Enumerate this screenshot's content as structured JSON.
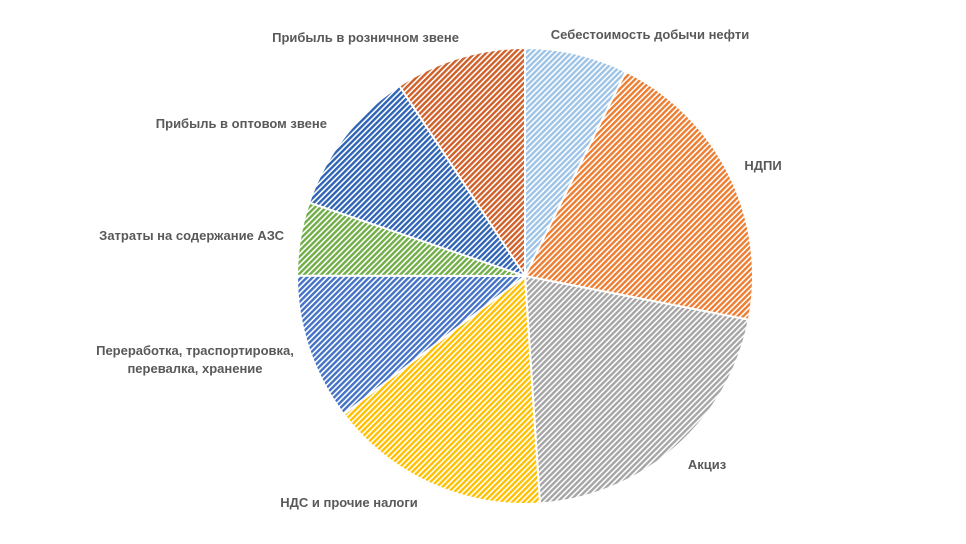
{
  "chart_data": {
    "type": "pie",
    "categories": [
      "Себестоимость добычи нефти",
      "НДПИ",
      "Акциз",
      "НДС и прочие налоги",
      "Переработка, траспортировка, перевалка, хранение",
      "Затраты на содержание АЗС",
      "Прибыль в оптовом звене",
      "Прибыль в розничном звене"
    ],
    "values": [
      7.3,
      20.8,
      20.9,
      15.7,
      10.4,
      5.2,
      10.5,
      9.3
    ],
    "colors": [
      "#9dc3e6",
      "#ed7d31",
      "#a5a5a5",
      "#ffc000",
      "#4472c4",
      "#70ad47",
      "#2f64b4",
      "#d0602a"
    ]
  }
}
